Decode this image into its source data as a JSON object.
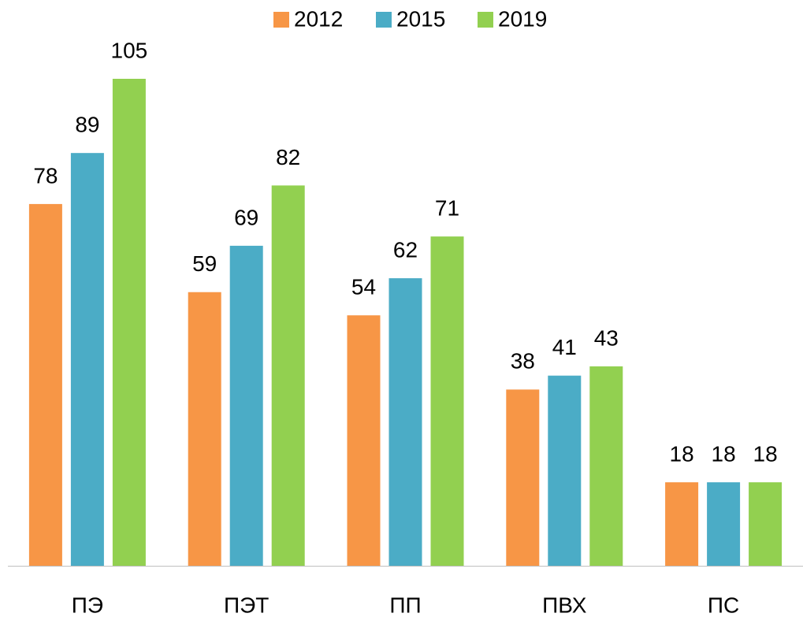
{
  "chart_data": {
    "type": "bar",
    "categories": [
      "ПЭ",
      "ПЭТ",
      "ПП",
      "ПВХ",
      "ПС"
    ],
    "series": [
      {
        "name": "2012",
        "color": "#f79646",
        "values": [
          78,
          59,
          54,
          38,
          18
        ]
      },
      {
        "name": "2015",
        "color": "#4bacc6",
        "values": [
          89,
          69,
          62,
          41,
          18
        ]
      },
      {
        "name": "2019",
        "color": "#92d050",
        "values": [
          105,
          82,
          71,
          43,
          18
        ]
      }
    ],
    "ylim": [
      0,
      105
    ]
  }
}
